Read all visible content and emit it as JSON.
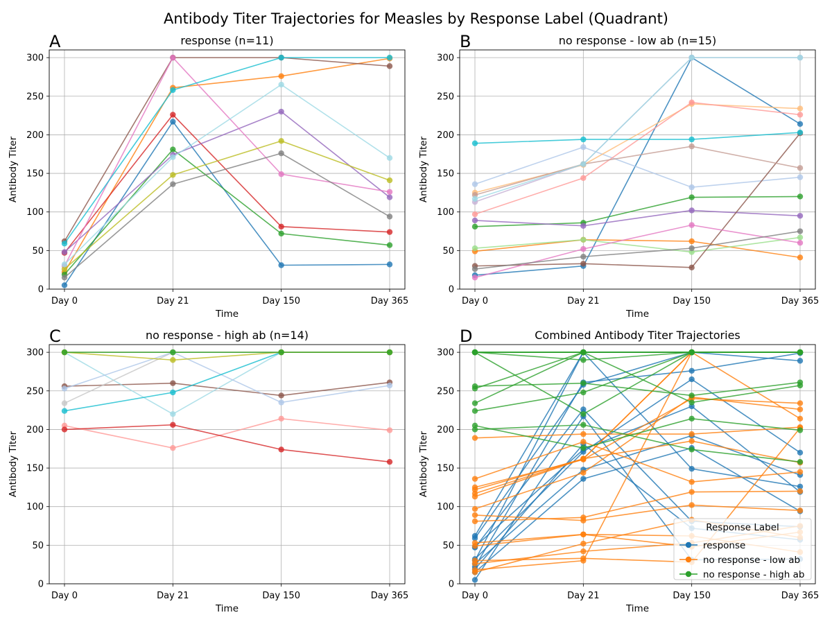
{
  "title": "Antibody Titer Trajectories for Measles by Response Label (Quadrant)",
  "chart_data": [
    {
      "panel_label": "A",
      "type": "line",
      "title": "response (n=11)",
      "xlabel": "Time",
      "ylabel": "Antibody Titer",
      "categories": [
        "Day 0",
        "Day 21",
        "Day 150",
        "Day 365"
      ],
      "yticks": [
        "0",
        "50",
        "100",
        "150",
        "200",
        "250",
        "300"
      ],
      "ylim": [
        0,
        310
      ],
      "grid": true,
      "series": [
        {
          "color": "#1f77b4",
          "values": [
            5,
            217,
            31,
            32
          ]
        },
        {
          "color": "#ff7f0e",
          "values": [
            22,
            261,
            276,
            299
          ]
        },
        {
          "color": "#2ca02c",
          "values": [
            19,
            181,
            72,
            57
          ]
        },
        {
          "color": "#d62728",
          "values": [
            47,
            226,
            81,
            74
          ]
        },
        {
          "color": "#9467bd",
          "values": [
            48,
            174,
            230,
            119
          ]
        },
        {
          "color": "#8c564b",
          "values": [
            62,
            300,
            300,
            289
          ]
        },
        {
          "color": "#e377c2",
          "values": [
            30,
            300,
            149,
            126
          ]
        },
        {
          "color": "#7f7f7f",
          "values": [
            15,
            136,
            176,
            94
          ]
        },
        {
          "color": "#bcbd22",
          "values": [
            26,
            148,
            192,
            141
          ]
        },
        {
          "color": "#17becf",
          "values": [
            59,
            258,
            300,
            300
          ]
        },
        {
          "color": "#9edae5",
          "values": [
            32,
            171,
            265,
            170
          ]
        }
      ]
    },
    {
      "panel_label": "B",
      "type": "line",
      "title": "no response - low ab (n=15)",
      "xlabel": "Time",
      "ylabel": "Antibody Titer",
      "categories": [
        "Day 0",
        "Day 21",
        "Day 150",
        "Day 365"
      ],
      "yticks": [
        "0",
        "50",
        "100",
        "150",
        "200",
        "250",
        "300"
      ],
      "ylim": [
        0,
        310
      ],
      "grid": true,
      "series": [
        {
          "color": "#1f77b4",
          "values": [
            18,
            30,
            300,
            214
          ]
        },
        {
          "color": "#aec7e8",
          "values": [
            136,
            184,
            132,
            145
          ]
        },
        {
          "color": "#ff7f0e",
          "values": [
            49,
            64,
            62,
            41
          ]
        },
        {
          "color": "#ffbb78",
          "values": [
            125,
            161,
            240,
            234
          ]
        },
        {
          "color": "#2ca02c",
          "values": [
            81,
            86,
            119,
            120
          ]
        },
        {
          "color": "#98df8a",
          "values": [
            53,
            64,
            48,
            67
          ]
        },
        {
          "color": "#ff9896",
          "values": [
            97,
            144,
            242,
            226
          ]
        },
        {
          "color": "#9467bd",
          "values": [
            89,
            82,
            102,
            95
          ]
        },
        {
          "color": "#c5b0d5",
          "values": [
            113,
            162,
            300,
            300
          ]
        },
        {
          "color": "#8c564b",
          "values": [
            30,
            33,
            28,
            202
          ]
        },
        {
          "color": "#c49c94",
          "values": [
            122,
            162,
            185,
            157
          ]
        },
        {
          "color": "#e377c2",
          "values": [
            15,
            52,
            83,
            60
          ]
        },
        {
          "color": "#7f7f7f",
          "values": [
            26,
            42,
            53,
            75
          ]
        },
        {
          "color": "#17becf",
          "values": [
            189,
            194,
            194,
            203
          ]
        },
        {
          "color": "#9edae5",
          "values": [
            117,
            162,
            300,
            300
          ]
        }
      ]
    },
    {
      "panel_label": "C",
      "type": "line",
      "title": "no response - high ab (n=14)",
      "xlabel": "Time",
      "ylabel": "Antibody Titer",
      "categories": [
        "Day 0",
        "Day 21",
        "Day 150",
        "Day 365"
      ],
      "yticks": [
        "0",
        "50",
        "100",
        "150",
        "200",
        "250",
        "300"
      ],
      "ylim": [
        0,
        310
      ],
      "grid": true,
      "series": [
        {
          "color": "#e377c2",
          "values": [
            300,
            300,
            300,
            300
          ]
        },
        {
          "color": "#f7b6d2",
          "values": [
            300,
            300,
            300,
            300
          ]
        },
        {
          "color": "#8c564b",
          "values": [
            256,
            260,
            244,
            261
          ]
        },
        {
          "color": "#9edae5",
          "values": [
            300,
            220,
            300,
            300
          ]
        },
        {
          "color": "#c7c7c7",
          "values": [
            234,
            300,
            300,
            300
          ]
        },
        {
          "color": "#aec7e8",
          "values": [
            253,
            300,
            235,
            257
          ]
        },
        {
          "color": "#17becf",
          "values": [
            224,
            248,
            300,
            300
          ]
        },
        {
          "color": "#ff9896",
          "values": [
            205,
            176,
            214,
            199
          ]
        },
        {
          "color": "#d62728",
          "values": [
            200,
            206,
            174,
            158
          ]
        },
        {
          "color": "#dbdb8d",
          "values": [
            300,
            300,
            300,
            300
          ]
        },
        {
          "color": "#c49c94",
          "values": [
            300,
            300,
            300,
            300
          ]
        },
        {
          "color": "#98df8a",
          "values": [
            300,
            300,
            300,
            300
          ]
        },
        {
          "color": "#bcbd22",
          "values": [
            300,
            290,
            300,
            300
          ]
        },
        {
          "color": "#2ca02c",
          "values": [
            300,
            300,
            300,
            300
          ]
        }
      ]
    },
    {
      "panel_label": "D",
      "type": "line",
      "title": "Combined Antibody Titer Trajectories",
      "xlabel": "Time",
      "ylabel": "Antibody Titer",
      "categories": [
        "Day 0",
        "Day 21",
        "Day 150",
        "Day 365"
      ],
      "yticks": [
        "0",
        "50",
        "100",
        "150",
        "200",
        "250",
        "300"
      ],
      "ylim": [
        0,
        310
      ],
      "grid": true,
      "legend": {
        "title": "Response Label",
        "position": "lower-right",
        "entries": [
          {
            "label": "response",
            "color": "#1f77b4"
          },
          {
            "label": "no response - low ab",
            "color": "#ff7f0e"
          },
          {
            "label": "no response - high ab",
            "color": "#2ca02c"
          }
        ]
      },
      "group_colors": [
        "#1f77b4",
        "#ff7f0e",
        "#2ca02c"
      ],
      "groups_from_panels": [
        0,
        1,
        2
      ]
    }
  ]
}
